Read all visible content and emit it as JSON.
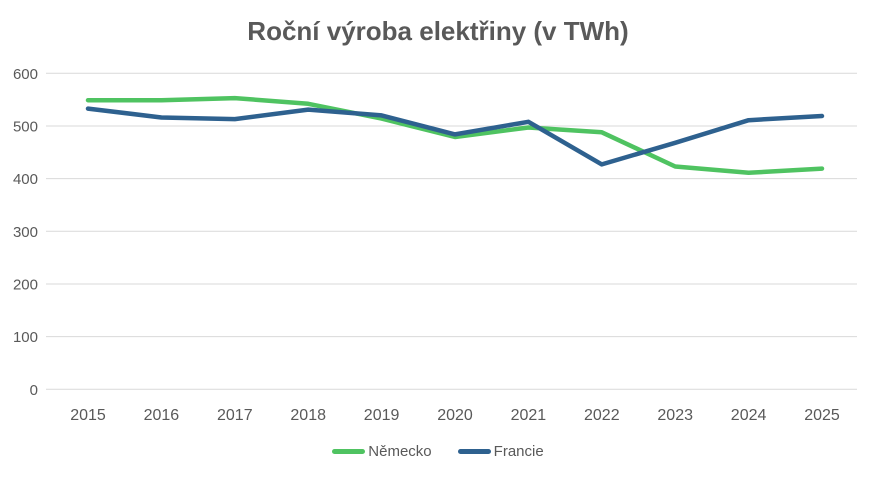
{
  "title": "Roční výroba elektřiny (v TWh)",
  "colors": {
    "background": "#ffffff",
    "title_text": "#595959",
    "axis_text": "#595959",
    "gridline": "#d9d9d9",
    "nemecko": "#4fc361",
    "francie": "#2e618f"
  },
  "legend": {
    "items": [
      {
        "label": "Německo",
        "color": "#4fc361"
      },
      {
        "label": "Francie",
        "color": "#2e618f"
      }
    ]
  },
  "chart_data": {
    "type": "line",
    "title": "Roční výroba elektřiny (v TWh)",
    "categories": [
      "2015",
      "2016",
      "2017",
      "2018",
      "2019",
      "2020",
      "2021",
      "2022",
      "2023",
      "2024",
      "2025"
    ],
    "series": [
      {
        "name": "Německo",
        "color": "#4fc361",
        "values": [
          549,
          549,
          553,
          542,
          514,
          479,
          497,
          488,
          423,
          411,
          419
        ]
      },
      {
        "name": "Francie",
        "color": "#2e618f",
        "values": [
          533,
          516,
          513,
          531,
          520,
          484,
          508,
          427,
          468,
          511,
          519
        ]
      }
    ],
    "xlabel": "",
    "ylabel": "",
    "ylim": [
      0,
      600
    ],
    "yticks": [
      0,
      100,
      200,
      300,
      400,
      500,
      600
    ],
    "grid": "horizontal",
    "legend_position": "bottom"
  }
}
